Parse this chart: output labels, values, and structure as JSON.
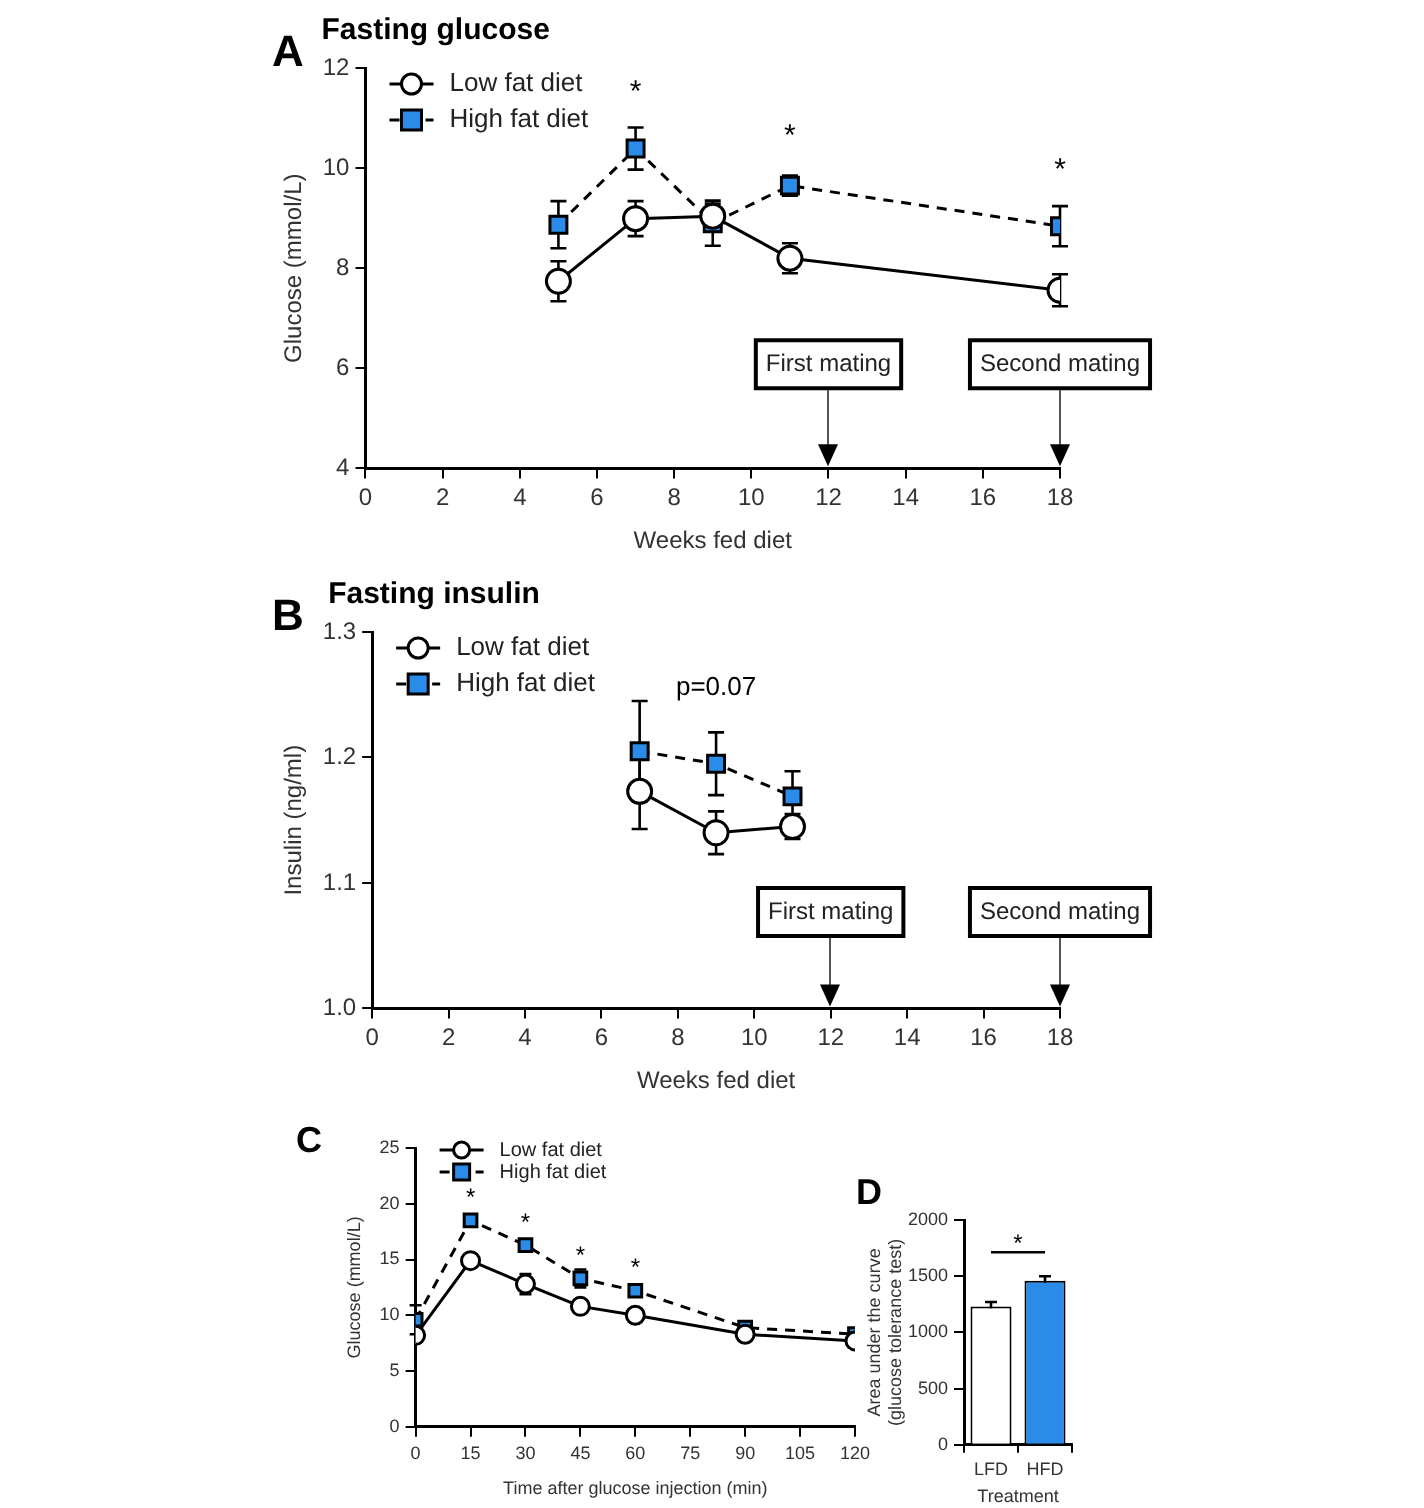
{
  "chart_data": [
    {
      "type": "line",
      "title": "Fasting glucose",
      "xlabel": "Weeks fed diet",
      "ylabel": "Glucose (mmol/L)",
      "x": [
        5,
        7,
        9,
        11,
        18
      ],
      "series": [
        {
          "name": "Low fat diet",
          "color": "#ffffff",
          "marker": "circle",
          "line_style": "solid",
          "values": [
            7.74,
            8.99,
            9.04,
            8.2,
            7.56
          ],
          "errors": [
            0.4,
            0.35,
            0.25,
            0.3,
            0.32
          ]
        },
        {
          "name": "High fat diet",
          "color": "#2a8be8",
          "marker": "square",
          "line_style": "dashed",
          "values": [
            8.87,
            10.39,
            8.9,
            9.65,
            8.84
          ],
          "errors": [
            0.47,
            0.42,
            0.45,
            0.2,
            0.4
          ]
        }
      ],
      "xlim": [
        0,
        18
      ],
      "xticks": [
        0,
        2,
        4,
        6,
        8,
        10,
        12,
        14,
        16,
        18
      ],
      "ylim": [
        4,
        12
      ],
      "yticks": [
        4,
        6,
        8,
        10,
        12
      ],
      "grid": false,
      "legend": "top left",
      "ref_lines": [
        {
          "axis": "x",
          "value": 12,
          "label": "First mating"
        },
        {
          "axis": "x",
          "value": 18,
          "label": "Second mating"
        }
      ],
      "annotations": [
        "A",
        {
          "text": "*",
          "x": 7,
          "y": 10.39
        },
        {
          "text": "*",
          "x": 11,
          "y": 9.65
        },
        {
          "text": "*",
          "x": 18,
          "y": 8.84
        }
      ]
    },
    {
      "type": "line",
      "title": "Fasting insulin",
      "xlabel": "Weeks fed diet",
      "ylabel": "Insulin (ng/ml)",
      "x": [
        7,
        9,
        11
      ],
      "series": [
        {
          "name": "Low fat diet",
          "color": "#ffffff",
          "marker": "circle",
          "line_style": "solid",
          "values": [
            1.173,
            1.14,
            1.145
          ],
          "errors": [
            0.03,
            0.017,
            0.01
          ]
        },
        {
          "name": "High fat diet",
          "color": "#2a8be8",
          "marker": "square",
          "line_style": "dashed",
          "values": [
            1.205,
            1.195,
            1.169
          ],
          "errors": [
            0.04,
            0.025,
            0.02
          ]
        }
      ],
      "xlim": [
        0,
        18
      ],
      "xticks": [
        0,
        2,
        4,
        6,
        8,
        10,
        12,
        14,
        16,
        18
      ],
      "ylim": [
        1.0,
        1.3
      ],
      "yticks": [
        {
          "value": 1.0,
          "label": "1.0"
        },
        1.1,
        1.2,
        1.3
      ],
      "grid": false,
      "legend": "top left",
      "ref_lines": [
        {
          "axis": "x",
          "value": 12,
          "label": "First mating"
        },
        {
          "axis": "x",
          "value": 18,
          "label": "Second mating"
        }
      ],
      "annotations": [
        "B",
        {
          "text": "p=0.07",
          "x": 9,
          "y": 1.195
        }
      ]
    },
    {
      "type": "line",
      "xlabel": "Time after glucose injection (min)",
      "ylabel": "Glucose (mmol/L)",
      "x": [
        0,
        15,
        30,
        45,
        60,
        90,
        120
      ],
      "series": [
        {
          "name": "Low fat diet",
          "color": "#ffffff",
          "marker": "circle",
          "line_style": "solid",
          "values": [
            8.2,
            14.9,
            12.8,
            10.8,
            10,
            8.3,
            7.7
          ],
          "errors": [
            null,
            null,
            0.9,
            null,
            null,
            null,
            null
          ]
        },
        {
          "name": "High fat diet",
          "color": "#2a8be8",
          "marker": "square",
          "line_style": "dashed",
          "values": [
            9.6,
            18.5,
            16.3,
            13.3,
            12.2,
            8.9,
            8.3
          ],
          "errors": [
            1.3,
            null,
            null,
            0.8,
            null,
            null,
            null
          ]
        }
      ],
      "xlim": [
        0,
        120
      ],
      "xticks": [
        0,
        15,
        30,
        45,
        60,
        75,
        90,
        105,
        120
      ],
      "ylim": [
        0,
        25
      ],
      "yticks": [
        0,
        5,
        10,
        15,
        20,
        25
      ],
      "grid": false,
      "legend": "top left",
      "annotations": [
        "C",
        {
          "text": "*",
          "x": 15,
          "y": 18.5
        },
        {
          "text": "*",
          "x": 30,
          "y": 16.3
        },
        {
          "text": "*",
          "x": 45,
          "y": 13.3
        },
        {
          "text": "*",
          "x": 60,
          "y": 12.2
        }
      ]
    },
    {
      "type": "bar",
      "xlabel": "Treatment",
      "ylabel": "Area under the curve\n(glucose tolerance test)",
      "categories": [
        "LFD",
        "HFD"
      ],
      "values": [
        1230,
        1460
      ],
      "errors": [
        40,
        40
      ],
      "colors": [
        "#ffffff",
        "#2a8be8"
      ],
      "ylim": [
        0,
        2000
      ],
      "yticks": [
        0,
        500,
        1000,
        1500,
        2000
      ],
      "grid": false,
      "annotations": [
        "D",
        "*"
      ]
    }
  ]
}
